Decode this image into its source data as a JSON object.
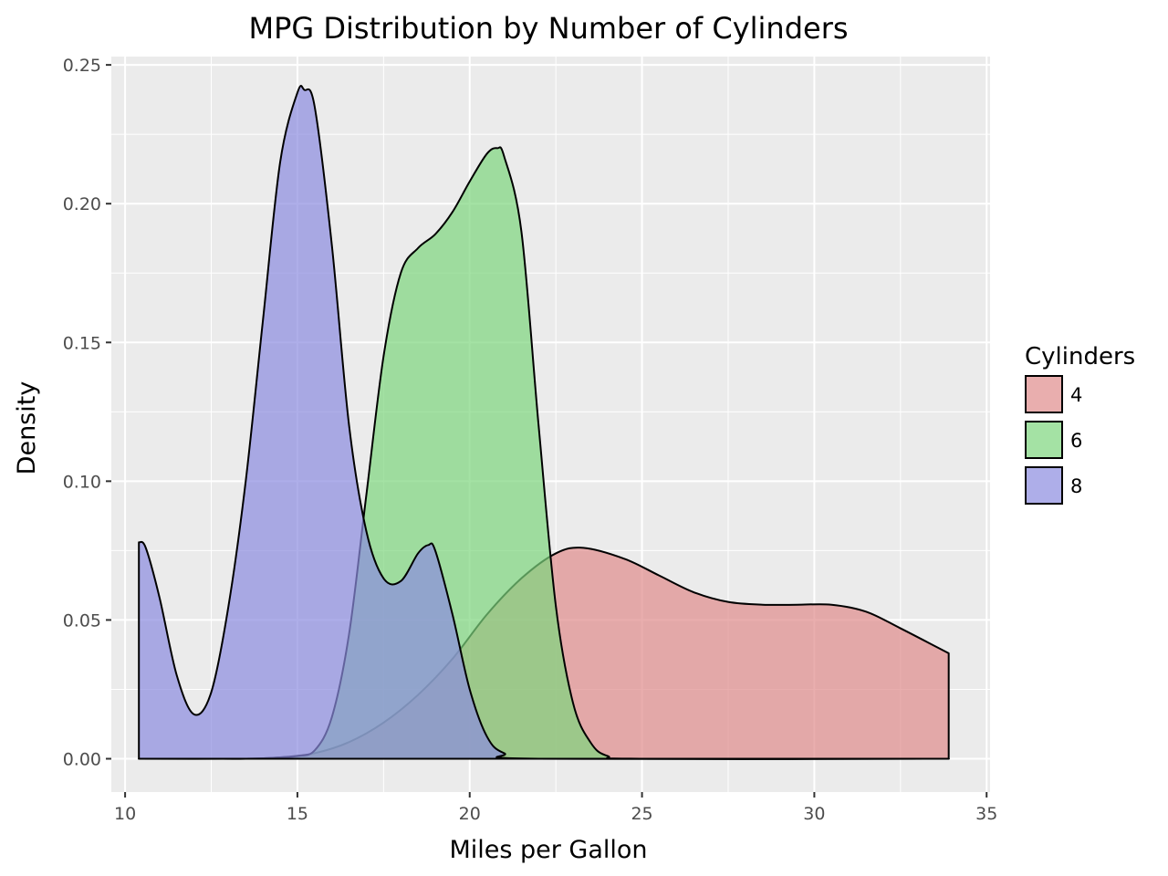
{
  "chart_data": {
    "type": "area",
    "subtype": "density",
    "title": "MPG Distribution by Number of Cylinders",
    "xlabel": "Miles per Gallon",
    "ylabel": "Density",
    "xlim": [
      9.6,
      35.1
    ],
    "ylim": [
      -0.012,
      0.253
    ],
    "x_ticks": [
      10,
      15,
      20,
      25,
      30,
      35
    ],
    "x_tick_labels": [
      "10",
      "15",
      "20",
      "25",
      "30",
      "35"
    ],
    "y_ticks": [
      0,
      0.05,
      0.1,
      0.15,
      0.2,
      0.25
    ],
    "y_tick_labels": [
      "0.00",
      "0.05",
      "0.10",
      "0.15",
      "0.20",
      "0.25"
    ],
    "grid": true,
    "background": "#ebebeb",
    "legend": {
      "title": "Cylinders",
      "position": "right"
    },
    "series": [
      {
        "name": "4",
        "color": "#e08b8b",
        "x": [
          10.4,
          11.5,
          12.5,
          13.5,
          14.5,
          15.5,
          16.5,
          17.5,
          18.5,
          19.5,
          20.5,
          21.5,
          22.5,
          23.3,
          24.5,
          25.5,
          26.5,
          27.5,
          28.5,
          29.5,
          30.5,
          31.5,
          32.5,
          33.9
        ],
        "values": [
          0.0,
          0.0,
          0.0,
          0.0,
          0.0005,
          0.002,
          0.006,
          0.013,
          0.023,
          0.036,
          0.052,
          0.065,
          0.074,
          0.076,
          0.072,
          0.066,
          0.06,
          0.0565,
          0.0555,
          0.0555,
          0.0555,
          0.053,
          0.047,
          0.038
        ]
      },
      {
        "name": "6",
        "color": "#7dd67d",
        "x": [
          10.4,
          13.5,
          14.5,
          15.0,
          15.5,
          16.0,
          16.5,
          17.0,
          17.5,
          18.0,
          18.5,
          19.0,
          19.5,
          20.0,
          20.5,
          20.8,
          21.0,
          21.5,
          22.0,
          22.5,
          23.0,
          23.5,
          24.0,
          25.0,
          33.9
        ],
        "values": [
          0.0,
          0.0,
          0.0005,
          0.001,
          0.003,
          0.015,
          0.045,
          0.095,
          0.145,
          0.175,
          0.184,
          0.189,
          0.197,
          0.208,
          0.218,
          0.22,
          0.217,
          0.19,
          0.12,
          0.055,
          0.02,
          0.006,
          0.001,
          0.0,
          0.0
        ]
      },
      {
        "name": "8",
        "color": "#8b8be0",
        "x": [
          10.4,
          10.6,
          11.0,
          11.5,
          12.0,
          12.5,
          13.0,
          13.5,
          14.0,
          14.5,
          15.0,
          15.2,
          15.5,
          16.0,
          16.5,
          17.0,
          17.5,
          18.0,
          18.5,
          18.8,
          19.0,
          19.5,
          20.0,
          20.5,
          21.0,
          22.0,
          33.9
        ],
        "values": [
          0.078,
          0.076,
          0.058,
          0.03,
          0.016,
          0.024,
          0.055,
          0.1,
          0.158,
          0.215,
          0.24,
          0.241,
          0.235,
          0.185,
          0.12,
          0.082,
          0.065,
          0.064,
          0.074,
          0.077,
          0.075,
          0.052,
          0.025,
          0.008,
          0.002,
          0.0,
          0.0
        ]
      }
    ]
  }
}
